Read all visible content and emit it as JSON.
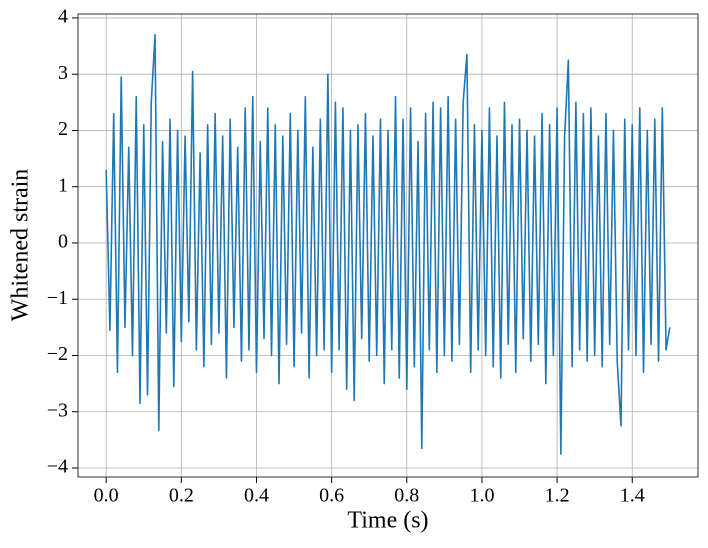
{
  "chart_data": {
    "type": "line",
    "xlabel": "Time (s)",
    "ylabel": "Whitened strain",
    "x": [
      0,
      0.01,
      0.02,
      0.03,
      0.04,
      0.05,
      0.06,
      0.07,
      0.08,
      0.09,
      0.1,
      0.11,
      0.12,
      0.13,
      0.14,
      0.15,
      0.16,
      0.17,
      0.18,
      0.19,
      0.2,
      0.21,
      0.22,
      0.23,
      0.24,
      0.25,
      0.26,
      0.27,
      0.28,
      0.29,
      0.3,
      0.31,
      0.32,
      0.33,
      0.34,
      0.35,
      0.36,
      0.37,
      0.38,
      0.39,
      0.4,
      0.41,
      0.42,
      0.43,
      0.44,
      0.45,
      0.46,
      0.47,
      0.48,
      0.49,
      0.5,
      0.51,
      0.52,
      0.53,
      0.54,
      0.55,
      0.56,
      0.57,
      0.58,
      0.59,
      0.6,
      0.61,
      0.62,
      0.63,
      0.64,
      0.65,
      0.66,
      0.67,
      0.68,
      0.69,
      0.7,
      0.71,
      0.72,
      0.73,
      0.74,
      0.75,
      0.76,
      0.77,
      0.78,
      0.79,
      0.8,
      0.81,
      0.82,
      0.83,
      0.84,
      0.85,
      0.86,
      0.87,
      0.88,
      0.89,
      0.9,
      0.91,
      0.92,
      0.93,
      0.94,
      0.95,
      0.96,
      0.97,
      0.98,
      0.99,
      1,
      1.01,
      1.02,
      1.03,
      1.04,
      1.05,
      1.06,
      1.07,
      1.08,
      1.09,
      1.1,
      1.11,
      1.12,
      1.13,
      1.14,
      1.15,
      1.16,
      1.17,
      1.18,
      1.19,
      1.2,
      1.21,
      1.22,
      1.23,
      1.24,
      1.25,
      1.26,
      1.27,
      1.28,
      1.29,
      1.3,
      1.31,
      1.32,
      1.33,
      1.34,
      1.35,
      1.36,
      1.37,
      1.38,
      1.39,
      1.4,
      1.41,
      1.42,
      1.43,
      1.44,
      1.45,
      1.46,
      1.47,
      1.48,
      1.49,
      1.5
    ],
    "series": [
      {
        "name": "Whitened strain",
        "color": "#1f77b4",
        "values": [
          1.3,
          -1.55,
          2.3,
          -2.3,
          2.95,
          -1.5,
          1.7,
          -2.0,
          2.6,
          -2.85,
          2.1,
          -2.7,
          2.5,
          3.7,
          -3.33,
          1.8,
          -1.6,
          2.2,
          -2.55,
          2.0,
          -1.75,
          1.9,
          -1.4,
          3.05,
          -1.9,
          1.6,
          -2.2,
          2.1,
          -1.8,
          2.3,
          -1.6,
          1.9,
          -2.4,
          2.2,
          -1.5,
          1.7,
          -2.1,
          2.4,
          -1.9,
          2.6,
          -2.3,
          1.8,
          -1.7,
          2.4,
          -2.0,
          2.1,
          -2.5,
          1.9,
          -1.8,
          2.3,
          -2.2,
          2.0,
          -1.6,
          2.6,
          -2.4,
          1.7,
          -2.0,
          2.2,
          -1.9,
          3.0,
          -2.3,
          2.5,
          -1.9,
          2.4,
          -2.6,
          2.0,
          -2.8,
          2.1,
          -1.7,
          2.3,
          -2.1,
          1.9,
          -2.0,
          2.2,
          -2.5,
          2.0,
          -1.9,
          2.6,
          -2.4,
          2.2,
          -2.6,
          2.4,
          -2.2,
          1.8,
          -3.65,
          2.3,
          -1.9,
          2.5,
          -2.3,
          2.4,
          -2.0,
          2.6,
          -2.1,
          2.2,
          -1.8,
          2.5,
          3.35,
          -2.3,
          2.1,
          -1.9,
          2.0,
          -2.0,
          2.4,
          -2.2,
          1.9,
          -2.4,
          2.5,
          -1.8,
          2.1,
          -2.3,
          2.2,
          -1.7,
          2.0,
          -2.1,
          1.9,
          -1.8,
          2.3,
          -2.5,
          2.1,
          -2.0,
          2.4,
          -3.75,
          1.9,
          3.25,
          -2.2,
          2.5,
          -1.9,
          2.3,
          -2.1,
          2.4,
          -2.0,
          1.9,
          -2.2,
          2.3,
          -1.8,
          2.0,
          -2.1,
          -3.25,
          2.2,
          -1.9,
          2.1,
          -2.0,
          2.4,
          -2.3,
          2.0,
          -1.8,
          2.2,
          -2.1,
          2.4,
          -1.9,
          -1.5
        ]
      }
    ],
    "xlim": [
      -0.075,
      1.575
    ],
    "ylim": [
      -4.16,
      4.07
    ],
    "xticks": [
      {
        "value": 0,
        "label": "0.0"
      },
      0.2,
      0.4,
      0.6,
      0.8,
      {
        "value": 1,
        "label": "1.0"
      },
      1.2,
      1.4
    ],
    "yticks": [
      {
        "value": -4,
        "label": "−4"
      },
      {
        "value": -3,
        "label": "−3"
      },
      {
        "value": -2,
        "label": "−2"
      },
      {
        "value": -1,
        "label": "−1"
      },
      0,
      1,
      2,
      3,
      4
    ],
    "grid": true
  }
}
